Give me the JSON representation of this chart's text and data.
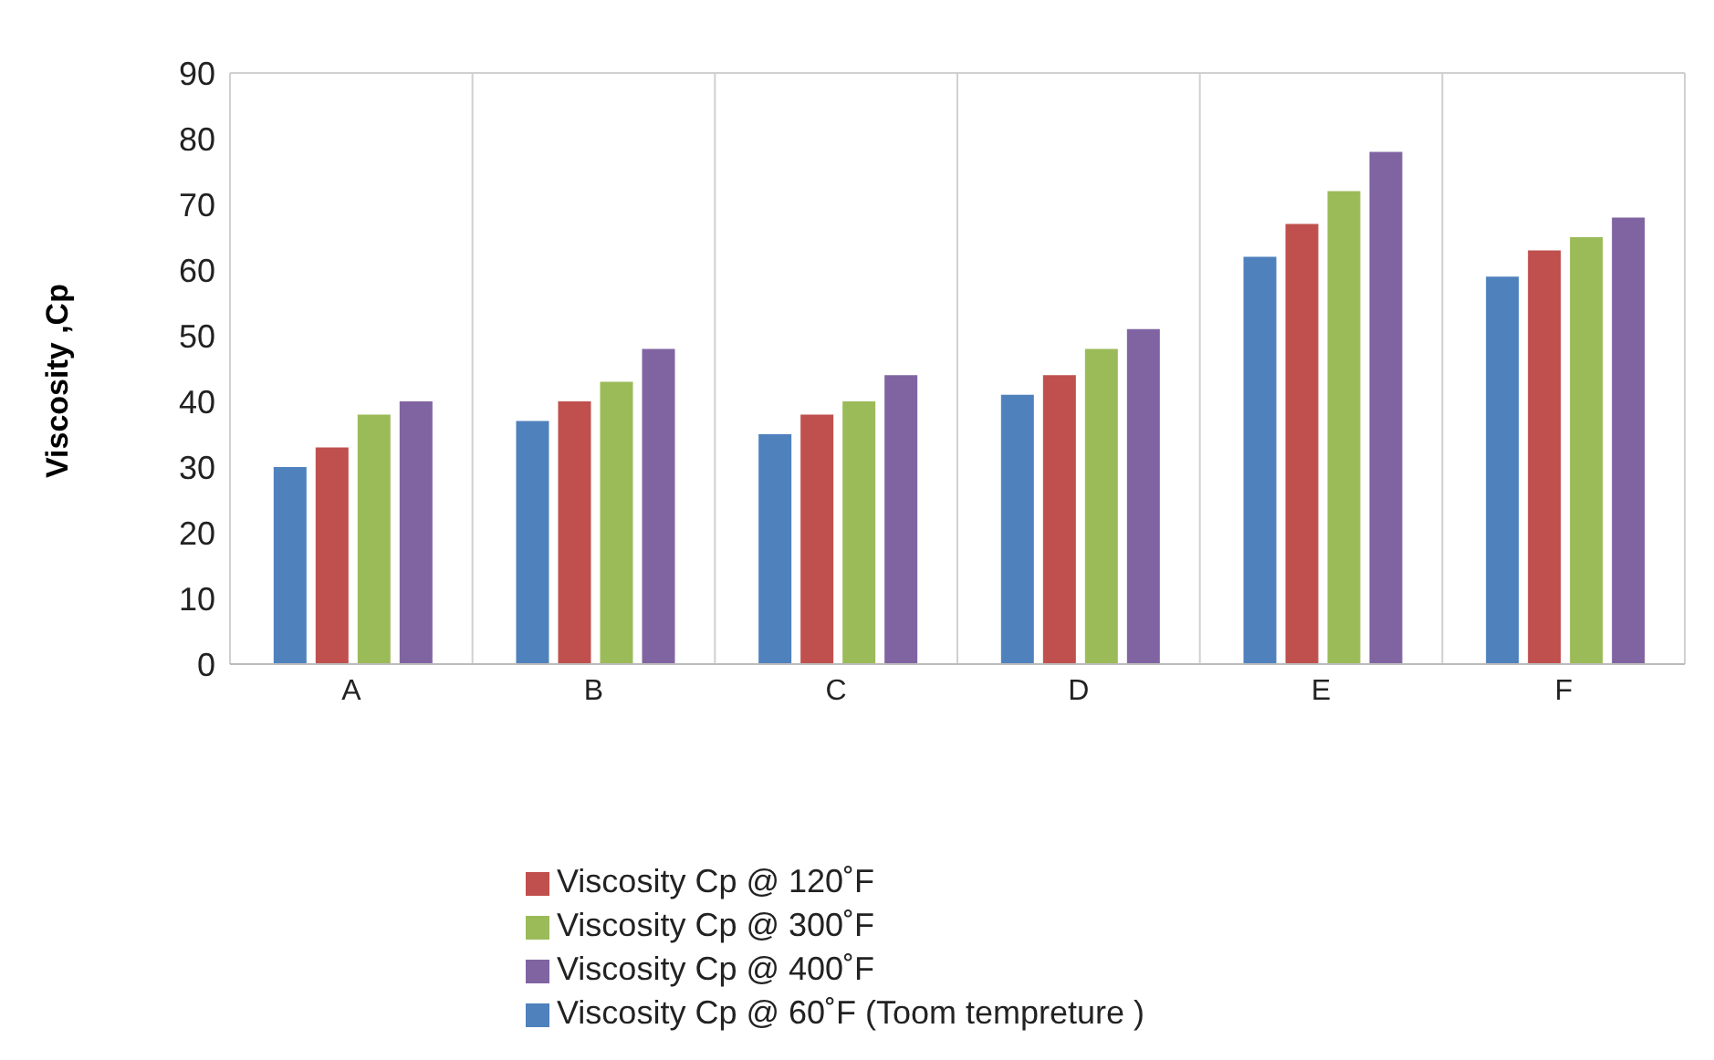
{
  "chart_data": {
    "type": "bar",
    "ylabel": "Viscosity ,Cp",
    "categories": [
      "A",
      "B",
      "C",
      "D",
      "E",
      "F"
    ],
    "series": [
      {
        "name": "Viscosity Cp @ 60˚F (Toom tempreture )",
        "color": "#4f81bd",
        "values": [
          30,
          37,
          35,
          41,
          62,
          59
        ]
      },
      {
        "name": "Viscosity Cp @ 120˚F",
        "color": "#c0504d",
        "values": [
          33,
          40,
          38,
          44,
          67,
          63
        ]
      },
      {
        "name": "Viscosity Cp @ 300˚F",
        "color": "#9bbb59",
        "values": [
          38,
          43,
          40,
          48,
          72,
          65
        ]
      },
      {
        "name": "Viscosity Cp @ 400˚F",
        "color": "#8064a2",
        "values": [
          40,
          48,
          44,
          51,
          78,
          68
        ]
      }
    ],
    "ylim": [
      0,
      90
    ],
    "yticks": [
      0,
      10,
      20,
      30,
      40,
      50,
      60,
      70,
      80,
      90
    ],
    "grid": true,
    "legend": "bottom"
  }
}
